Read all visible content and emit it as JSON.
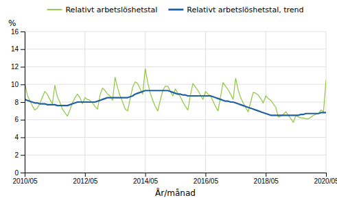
{
  "chart_data": {
    "type": "line",
    "xlabel": "År/månad",
    "ylabel": "%",
    "categories": [
      "2010/05",
      null,
      null,
      null,
      null,
      null,
      null,
      null,
      null,
      null,
      null,
      null,
      null,
      null,
      null,
      null,
      null,
      null,
      null,
      null,
      null,
      null,
      null,
      null,
      "2012/05",
      null,
      null,
      null,
      null,
      null,
      null,
      null,
      null,
      null,
      null,
      null,
      null,
      null,
      null,
      null,
      null,
      null,
      null,
      null,
      null,
      null,
      null,
      null,
      "2014/05",
      null,
      null,
      null,
      null,
      null,
      null,
      null,
      null,
      null,
      null,
      null,
      null,
      null,
      null,
      null,
      null,
      null,
      null,
      null,
      null,
      null,
      null,
      null,
      "2016/05",
      null,
      null,
      null,
      null,
      null,
      null,
      null,
      null,
      null,
      null,
      null,
      null,
      null,
      null,
      null,
      null,
      null,
      null,
      null,
      null,
      null,
      null,
      null,
      "2018/05",
      null,
      null,
      null,
      null,
      null,
      null,
      null,
      null,
      null,
      null,
      null,
      null,
      null,
      null,
      null,
      null,
      null,
      null,
      null,
      null,
      null,
      null,
      null,
      "2020/05"
    ],
    "ylim": [
      0,
      16
    ],
    "yticks": [
      0,
      2,
      4,
      6,
      8,
      10,
      12,
      14,
      16
    ],
    "grid": true,
    "legend": "top",
    "series": [
      {
        "name": "Relativt arbetslöshetstal",
        "color": "#8dc63f",
        "values": [
          10.3,
          8.8,
          8.2,
          7.6,
          7.1,
          7.3,
          7.8,
          8.5,
          9.2,
          8.9,
          8.3,
          7.8,
          9.9,
          8.6,
          8.0,
          7.2,
          6.8,
          6.4,
          7.1,
          7.9,
          8.5,
          8.9,
          8.5,
          7.8,
          8.5,
          8.3,
          8.2,
          7.9,
          7.5,
          7.2,
          8.8,
          9.6,
          9.3,
          8.9,
          8.7,
          8.2,
          10.8,
          9.6,
          8.7,
          8.0,
          7.2,
          7.0,
          8.4,
          9.7,
          10.3,
          10.1,
          9.5,
          8.9,
          11.8,
          10.2,
          9.0,
          8.2,
          7.5,
          7.0,
          8.2,
          9.3,
          9.8,
          9.8,
          9.2,
          8.7,
          9.5,
          9.0,
          8.6,
          8.0,
          7.5,
          7.1,
          8.8,
          10.1,
          9.7,
          9.3,
          8.8,
          8.3,
          9.2,
          8.9,
          8.7,
          8.1,
          7.5,
          7.0,
          8.6,
          10.2,
          9.8,
          9.4,
          8.9,
          8.3,
          10.7,
          9.4,
          8.5,
          7.9,
          7.4,
          6.9,
          8.0,
          9.1,
          9.0,
          8.8,
          8.4,
          7.9,
          8.7,
          8.4,
          8.2,
          7.8,
          7.4,
          6.3,
          6.4,
          6.6,
          6.9,
          6.5,
          6.1,
          5.7,
          6.5,
          6.3,
          6.2,
          6.2,
          6.1,
          6.1,
          6.3,
          6.5,
          6.6,
          6.7,
          7.1,
          6.9,
          10.5
        ]
      },
      {
        "name": "Relativt arbetslöshetstal, trend",
        "color": "#2060a0",
        "values": [
          8.3,
          8.2,
          8.1,
          8.0,
          7.9,
          7.9,
          7.8,
          7.8,
          7.8,
          7.7,
          7.7,
          7.7,
          7.7,
          7.6,
          7.6,
          7.6,
          7.6,
          7.6,
          7.7,
          7.8,
          7.9,
          8.0,
          8.0,
          8.0,
          8.0,
          8.0,
          8.0,
          8.0,
          8.0,
          8.1,
          8.2,
          8.3,
          8.4,
          8.5,
          8.5,
          8.5,
          8.5,
          8.5,
          8.5,
          8.5,
          8.5,
          8.5,
          8.6,
          8.7,
          8.9,
          9.0,
          9.1,
          9.2,
          9.3,
          9.3,
          9.3,
          9.3,
          9.3,
          9.3,
          9.3,
          9.3,
          9.3,
          9.3,
          9.2,
          9.1,
          9.0,
          8.9,
          8.9,
          8.8,
          8.8,
          8.7,
          8.7,
          8.7,
          8.7,
          8.7,
          8.7,
          8.7,
          8.7,
          8.7,
          8.7,
          8.6,
          8.5,
          8.4,
          8.3,
          8.2,
          8.1,
          8.1,
          8.0,
          8.0,
          7.9,
          7.8,
          7.7,
          7.6,
          7.5,
          7.4,
          7.3,
          7.2,
          7.1,
          7.0,
          6.9,
          6.8,
          6.7,
          6.6,
          6.5,
          6.5,
          6.5,
          6.5,
          6.5,
          6.5,
          6.5,
          6.5,
          6.5,
          6.5,
          6.5,
          6.5,
          6.6,
          6.6,
          6.7,
          6.7,
          6.7,
          6.7,
          6.7,
          6.7,
          6.8,
          6.8,
          6.8
        ]
      }
    ]
  }
}
